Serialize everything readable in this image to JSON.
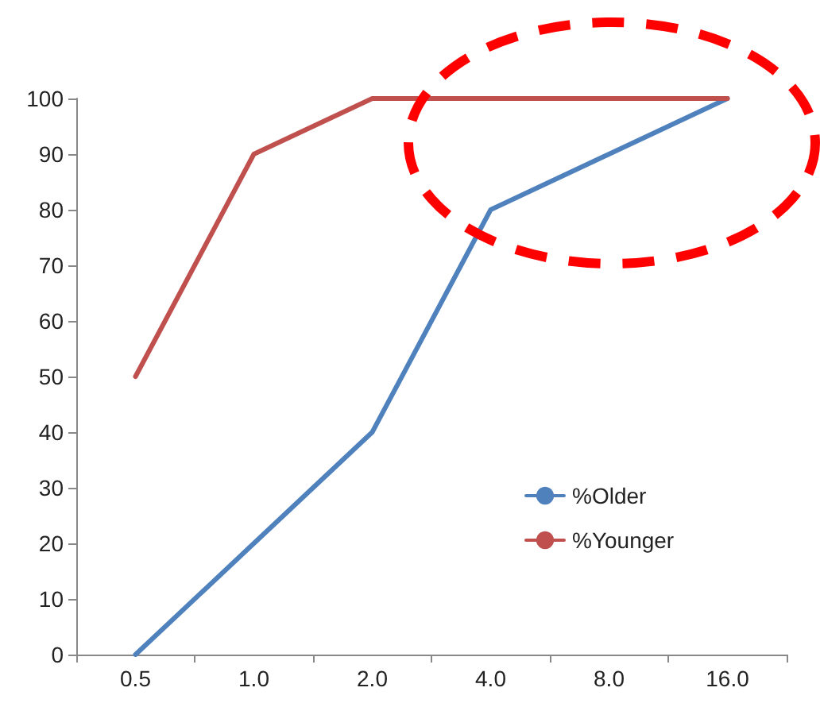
{
  "chart_data": {
    "type": "line",
    "categories": [
      "0.5",
      "1.0",
      "2.0",
      "4.0",
      "8.0",
      "16.0"
    ],
    "series": [
      {
        "name": "%Older",
        "color": "#4f81bd",
        "values": [
          0,
          20,
          40,
          80,
          90,
          100
        ]
      },
      {
        "name": "%Younger",
        "color": "#c0504d",
        "values": [
          50,
          90,
          100,
          100,
          100,
          100
        ]
      }
    ],
    "ylim": [
      0,
      100
    ],
    "yticks": [
      0,
      10,
      20,
      30,
      40,
      50,
      60,
      70,
      80,
      90,
      100
    ],
    "grid": false,
    "legend": "right",
    "marker": "none",
    "line_style": "solid"
  }
}
